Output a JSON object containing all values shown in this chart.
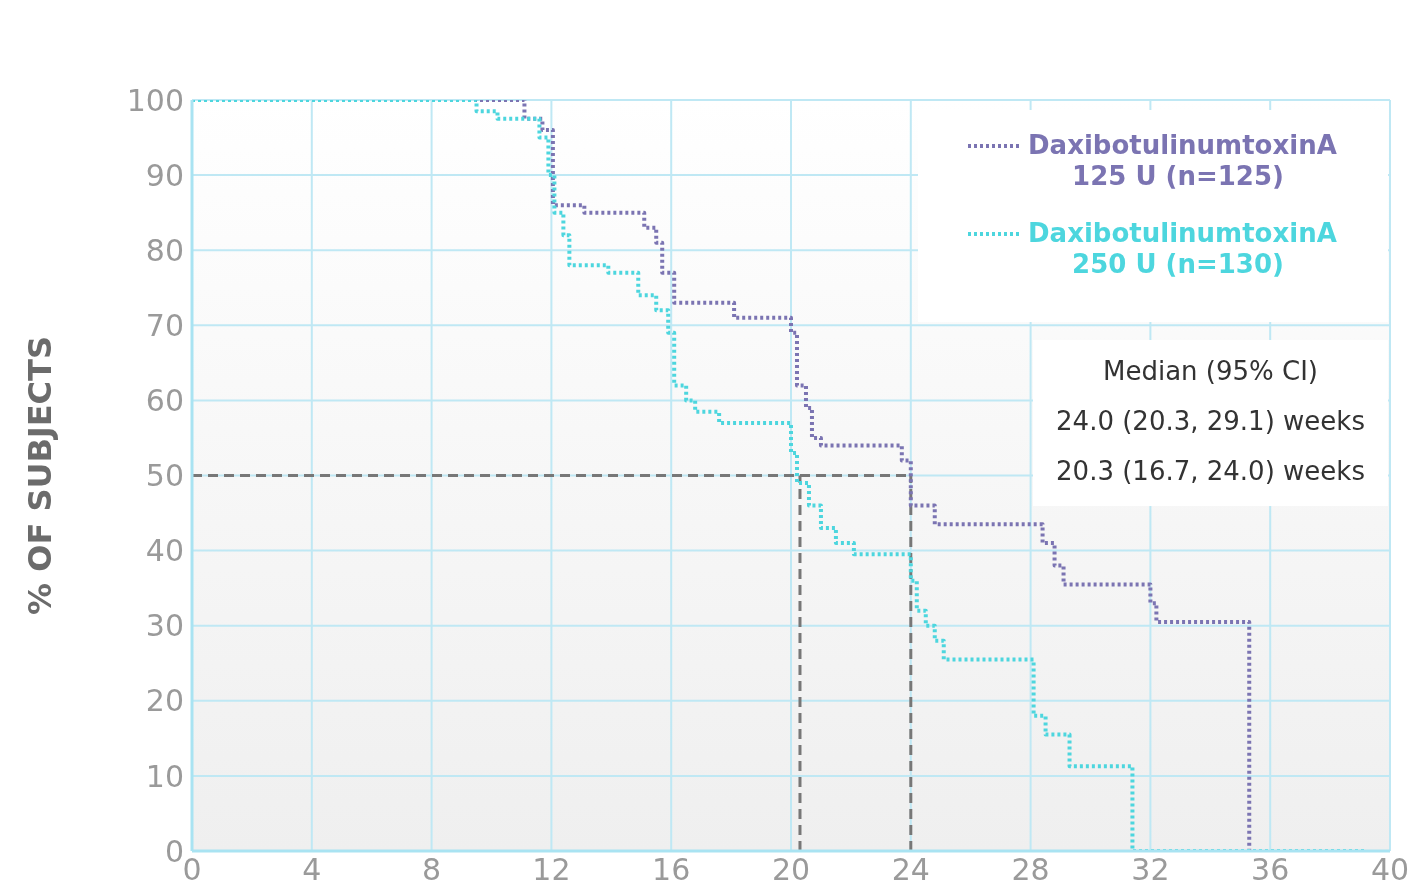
{
  "chart_data": {
    "type": "step",
    "ylabel": "% OF SUBJECTS",
    "xlim": [
      0,
      40
    ],
    "xticks": [
      0,
      4,
      8,
      12,
      16,
      20,
      24,
      28,
      32,
      36,
      40
    ],
    "ylim": [
      0,
      100
    ],
    "yticks": [
      0,
      10,
      20,
      30,
      40,
      50,
      60,
      70,
      80,
      90,
      100
    ],
    "grid": true,
    "legend": "top right",
    "line_style": "dotted",
    "marker": "none",
    "series": [
      {
        "name": "DaxibotulinumtoxinA 125 U (n=125)",
        "color": "#7b74b2",
        "x": [
          0,
          11.1,
          11.7,
          12.05,
          13.1,
          15.1,
          15.5,
          15.7,
          16.1,
          18.1,
          20.0,
          20.2,
          20.5,
          20.7,
          21.0,
          23.7,
          24.0,
          24.8,
          28.4,
          28.8,
          29.1,
          32.0,
          32.2,
          35.3,
          39.2
        ],
        "values": [
          100,
          97.5,
          96,
          86,
          85,
          83,
          81,
          77,
          73,
          71,
          69,
          62,
          59,
          55,
          54,
          52,
          46,
          43.5,
          41,
          38,
          35.5,
          33,
          30.5,
          0,
          0
        ]
      },
      {
        "name": "DaxibotulinumtoxinA 250 U (n=130)",
        "color": "#4dd6de",
        "x": [
          0,
          9.5,
          10.2,
          11.6,
          11.9,
          12.1,
          12.4,
          12.6,
          13.9,
          14.9,
          15.5,
          15.9,
          16.1,
          16.5,
          16.8,
          17.6,
          20.0,
          20.2,
          20.6,
          21.0,
          21.5,
          22.1,
          24.0,
          24.2,
          24.5,
          24.8,
          25.1,
          28.1,
          28.5,
          29.3,
          31.4,
          39.2
        ],
        "values": [
          100,
          98.5,
          97.5,
          95,
          90,
          85,
          82,
          78,
          77,
          74,
          72,
          69,
          62,
          60,
          58.5,
          57,
          53,
          49,
          46,
          43,
          41,
          39.5,
          36,
          32,
          30,
          28,
          25.5,
          18,
          15.5,
          11.3,
          0,
          0
        ]
      }
    ],
    "ref_lines": [
      {
        "axis": "y",
        "value": 50,
        "color": "#777777",
        "line_style": "dashed"
      },
      {
        "axis": "x",
        "value": 20.3,
        "color": "#777777",
        "line_style": "dashed"
      },
      {
        "axis": "x",
        "value": 24.0,
        "color": "#777777",
        "line_style": "dashed"
      }
    ],
    "annotations": [
      "Median (95% CI)",
      "24.0 (20.3, 29.1) weeks",
      "20.3 (16.7, 24.0) weeks"
    ]
  }
}
